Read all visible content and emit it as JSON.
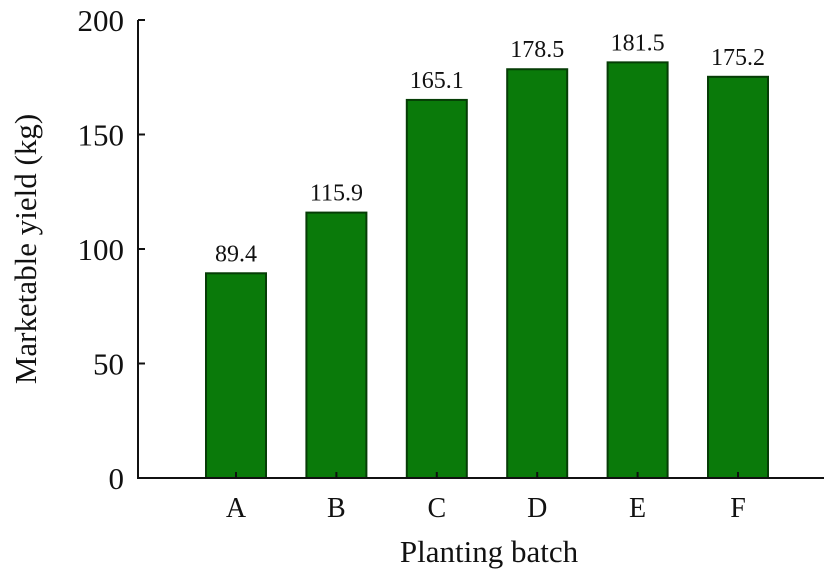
{
  "chart_data": {
    "type": "bar",
    "xlabel": "Planting batch",
    "ylabel": "Marketable yield (kg)",
    "categories": [
      "A",
      "B",
      "C",
      "D",
      "E",
      "F"
    ],
    "values": [
      89.4,
      115.9,
      165.1,
      178.5,
      181.5,
      175.2
    ],
    "data_labels": [
      "89.4",
      "115.9",
      "165.1",
      "178.5",
      "181.5",
      "175.2"
    ],
    "ylim": [
      0,
      200
    ],
    "yticks": [
      0,
      50,
      100,
      150,
      200
    ],
    "ytick_labels": [
      "0",
      "50",
      "100",
      "150",
      "200"
    ],
    "grid": false,
    "colors": {
      "bar_fill": "#0a7a0a",
      "bar_stroke": "#063d06"
    }
  }
}
